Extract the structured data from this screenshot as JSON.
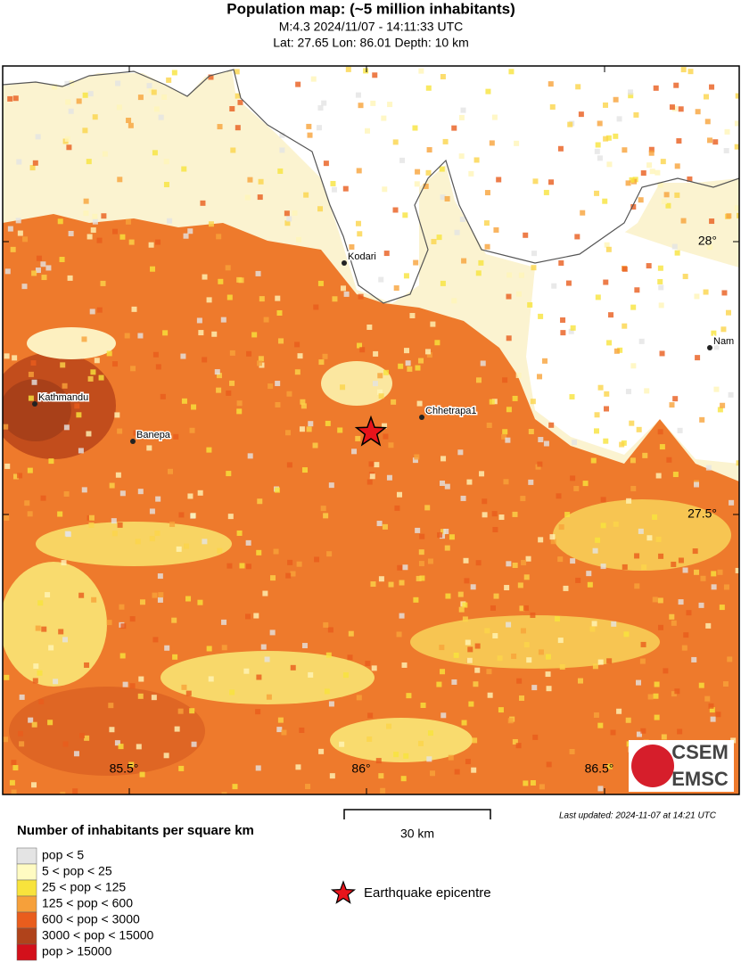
{
  "header": {
    "title": "Population map: (~5 million inhabitants)",
    "line1": "M:4.3 2024/11/07 - 14:11:33 UTC",
    "line2": "Lat: 27.65 Lon: 86.01 Depth: 10 km"
  },
  "map": {
    "lat_labels": [
      "28°",
      "27.5°"
    ],
    "lon_labels": [
      "85.5°",
      "86°",
      "86.5°"
    ],
    "places": [
      "Kodari",
      "Nam",
      "Kathmandu",
      "Banepa",
      "Chhetrapa1"
    ]
  },
  "scale": {
    "label": "30 km"
  },
  "updated": "Last updated: 2024-11-07 at 14:21 UTC",
  "legend": {
    "title": "Number of inhabitants per square km",
    "items": [
      {
        "label": "pop < 5",
        "color": "#e4e4e4"
      },
      {
        "label": "5 < pop < 25",
        "color": "#fffbc2"
      },
      {
        "label": "25 < pop < 125",
        "color": "#f8e33c"
      },
      {
        "label": "125 < pop < 600",
        "color": "#f6a03a"
      },
      {
        "label": "600 < pop < 3000",
        "color": "#e95d1d"
      },
      {
        "label": "3000 < pop < 15000",
        "color": "#b0431b"
      },
      {
        "label": "pop > 15000",
        "color": "#d3101b"
      }
    ],
    "epicentre": "Earthquake epicentre"
  },
  "logo": {
    "top": "CSEM",
    "bottom": "EMSC"
  }
}
